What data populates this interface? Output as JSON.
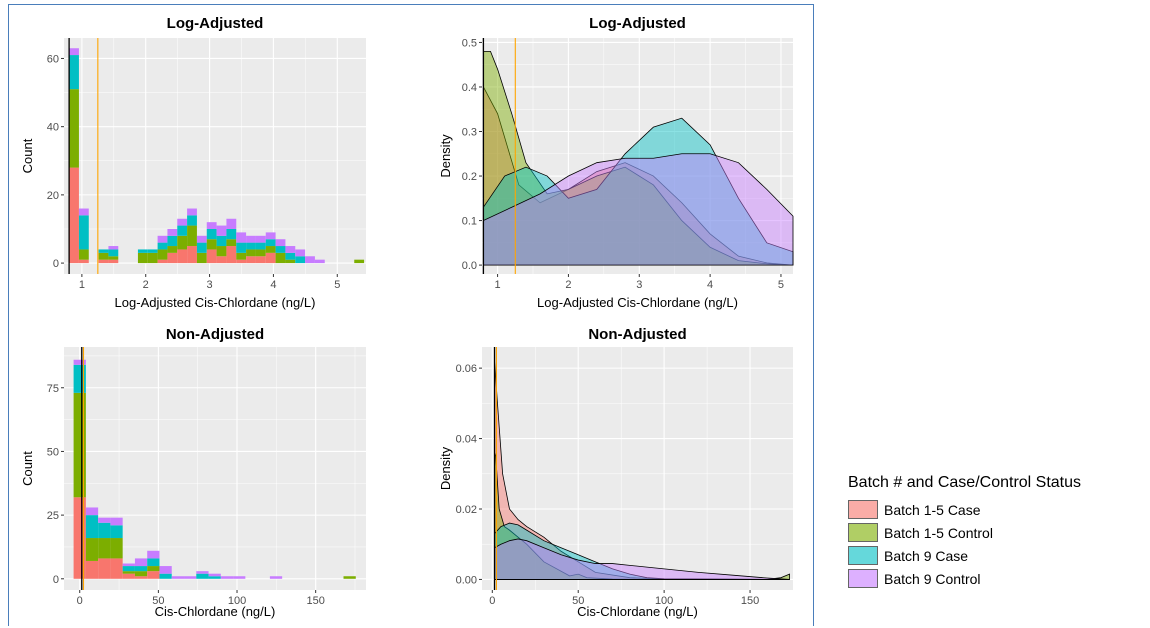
{
  "colors": {
    "Batch 1-5 Case": "#F8766D",
    "Batch 1-5 Control": "#7CAE00",
    "Batch 9 Case": "#00BFC4",
    "Batch 9 Control": "#C77CFF",
    "panel_bg": "#EBEBEB",
    "grid": "#FFFFFF",
    "vline_black": "#000000",
    "vline_orange": "#FFA500"
  },
  "legend": {
    "title": "Batch # and Case/Control Status",
    "items": [
      "Batch 1-5 Case",
      "Batch 1-5 Control",
      "Batch 9 Case",
      "Batch 9 Control"
    ]
  },
  "chart_data": [
    {
      "type": "bar",
      "subtype": "stacked-histogram",
      "title": "Log-Adjusted",
      "xlabel": "Log-Adjusted Cis-Chlordane (ng/L)",
      "ylabel": "Count",
      "xlim": [
        0.72,
        5.45
      ],
      "ylim": [
        -3.2,
        66
      ],
      "xticks": [
        1,
        2,
        3,
        4,
        5
      ],
      "yticks": [
        0,
        20,
        40,
        60
      ],
      "bin_width": 0.154,
      "vlines": [
        0.8,
        1.25
      ],
      "bins": [
        {
          "x0": 0.8,
          "counts": [
            28,
            23,
            10,
            2
          ]
        },
        {
          "x0": 0.954,
          "counts": [
            1,
            3,
            10,
            2
          ]
        },
        {
          "x0": 1.108,
          "counts": [
            0,
            0,
            0,
            0
          ]
        },
        {
          "x0": 1.262,
          "counts": [
            1,
            2,
            1,
            0
          ]
        },
        {
          "x0": 1.416,
          "counts": [
            1,
            1,
            2,
            1
          ]
        },
        {
          "x0": 1.57,
          "counts": [
            0,
            0,
            0,
            0
          ]
        },
        {
          "x0": 1.724,
          "counts": [
            0,
            0,
            0,
            0
          ]
        },
        {
          "x0": 1.878,
          "counts": [
            0,
            3,
            1,
            0
          ]
        },
        {
          "x0": 2.032,
          "counts": [
            0,
            3,
            1,
            0
          ]
        },
        {
          "x0": 2.186,
          "counts": [
            1,
            3,
            2,
            2
          ]
        },
        {
          "x0": 2.34,
          "counts": [
            3,
            2,
            3,
            2
          ]
        },
        {
          "x0": 2.494,
          "counts": [
            4,
            4,
            3,
            2
          ]
        },
        {
          "x0": 2.648,
          "counts": [
            5,
            6,
            3,
            2
          ]
        },
        {
          "x0": 2.802,
          "counts": [
            0,
            3,
            3,
            2
          ]
        },
        {
          "x0": 2.956,
          "counts": [
            4,
            3,
            3,
            2
          ]
        },
        {
          "x0": 3.11,
          "counts": [
            2,
            3,
            3,
            3
          ]
        },
        {
          "x0": 3.264,
          "counts": [
            5,
            2,
            3,
            3
          ]
        },
        {
          "x0": 3.418,
          "counts": [
            1,
            2,
            3,
            3
          ]
        },
        {
          "x0": 3.572,
          "counts": [
            2,
            2,
            2,
            2
          ]
        },
        {
          "x0": 3.726,
          "counts": [
            2,
            2,
            2,
            2
          ]
        },
        {
          "x0": 3.88,
          "counts": [
            3,
            2,
            2,
            2
          ]
        },
        {
          "x0": 4.034,
          "counts": [
            0,
            3,
            2,
            2
          ]
        },
        {
          "x0": 4.188,
          "counts": [
            0,
            1,
            2,
            2
          ]
        },
        {
          "x0": 4.342,
          "counts": [
            0,
            0,
            2,
            2
          ]
        },
        {
          "x0": 4.496,
          "counts": [
            0,
            0,
            0,
            2
          ]
        },
        {
          "x0": 4.65,
          "counts": [
            0,
            0,
            0,
            1
          ]
        },
        {
          "x0": 4.804,
          "counts": [
            0,
            0,
            0,
            0
          ]
        },
        {
          "x0": 4.958,
          "counts": [
            0,
            0,
            0,
            0
          ]
        },
        {
          "x0": 5.112,
          "counts": [
            0,
            0,
            0,
            0
          ]
        },
        {
          "x0": 5.266,
          "counts": [
            0,
            1,
            0,
            0
          ]
        }
      ]
    },
    {
      "type": "area",
      "subtype": "density",
      "title": "Log-Adjusted",
      "xlabel": "Log-Adjusted Cis-Chlordane (ng/L)",
      "ylabel": "Density",
      "xlim": [
        0.78,
        5.17
      ],
      "ylim": [
        -0.02,
        0.51
      ],
      "xticks": [
        1,
        2,
        3,
        4,
        5
      ],
      "yticks": [
        0.0,
        0.1,
        0.2,
        0.3,
        0.4,
        0.5
      ],
      "ytick_labels": [
        "0.0",
        "0.1",
        "0.2",
        "0.3",
        "0.4",
        "0.5"
      ],
      "vlines": [
        0.8,
        1.25
      ],
      "series": [
        {
          "name": "Batch 1-5 Case",
          "x": [
            0.8,
            1.0,
            1.3,
            1.6,
            2.0,
            2.4,
            2.8,
            3.2,
            3.6,
            4.0,
            4.4,
            4.8,
            5.17
          ],
          "y": [
            0.4,
            0.34,
            0.18,
            0.14,
            0.17,
            0.21,
            0.23,
            0.2,
            0.14,
            0.07,
            0.02,
            0.005,
            0.0
          ]
        },
        {
          "name": "Batch 1-5 Control",
          "x": [
            0.8,
            0.9,
            1.0,
            1.2,
            1.4,
            1.7,
            2.0,
            2.4,
            2.8,
            3.2,
            3.6,
            4.0,
            4.4,
            4.8,
            5.17
          ],
          "y": [
            0.48,
            0.48,
            0.44,
            0.34,
            0.23,
            0.16,
            0.17,
            0.2,
            0.22,
            0.18,
            0.1,
            0.04,
            0.01,
            0.003,
            0.0
          ]
        },
        {
          "name": "Batch 9 Case",
          "x": [
            0.8,
            1.1,
            1.4,
            1.7,
            2.0,
            2.4,
            2.8,
            3.2,
            3.6,
            4.0,
            4.4,
            4.8,
            5.17
          ],
          "y": [
            0.13,
            0.2,
            0.22,
            0.2,
            0.15,
            0.17,
            0.25,
            0.31,
            0.33,
            0.27,
            0.15,
            0.05,
            0.03
          ]
        },
        {
          "name": "Batch 9 Control",
          "x": [
            0.8,
            1.2,
            1.6,
            2.0,
            2.4,
            2.8,
            3.2,
            3.6,
            4.0,
            4.4,
            4.8,
            5.17
          ],
          "y": [
            0.1,
            0.13,
            0.16,
            0.2,
            0.23,
            0.24,
            0.24,
            0.25,
            0.25,
            0.23,
            0.17,
            0.11
          ]
        }
      ]
    },
    {
      "type": "bar",
      "subtype": "stacked-histogram",
      "title": "Non-Adjusted",
      "xlabel": "Cis-Chlordane (ng/L)",
      "ylabel": "Count",
      "xlim": [
        -10,
        182
      ],
      "ylim": [
        -4.4,
        91
      ],
      "xticks": [
        0,
        50,
        100,
        150
      ],
      "yticks": [
        0,
        25,
        50,
        75
      ],
      "bin_width": 7.8,
      "vlines": [
        1.3,
        2.4
      ],
      "bins": [
        {
          "x0": -3.9,
          "counts": [
            32,
            41,
            11,
            2
          ]
        },
        {
          "x0": 3.9,
          "counts": [
            7,
            9,
            9,
            3
          ]
        },
        {
          "x0": 11.7,
          "counts": [
            8,
            8,
            6,
            2
          ]
        },
        {
          "x0": 19.5,
          "counts": [
            8,
            8,
            5,
            3
          ]
        },
        {
          "x0": 27.3,
          "counts": [
            2,
            1,
            2,
            1
          ]
        },
        {
          "x0": 35.1,
          "counts": [
            1,
            2,
            2,
            3
          ]
        },
        {
          "x0": 42.9,
          "counts": [
            3,
            2,
            3,
            3
          ]
        },
        {
          "x0": 50.7,
          "counts": [
            0,
            0,
            2,
            3
          ]
        },
        {
          "x0": 58.5,
          "counts": [
            0,
            0,
            0,
            1
          ]
        },
        {
          "x0": 66.3,
          "counts": [
            0,
            0,
            0,
            1
          ]
        },
        {
          "x0": 74.1,
          "counts": [
            0,
            0,
            2,
            1
          ]
        },
        {
          "x0": 81.9,
          "counts": [
            0,
            0,
            1,
            1
          ]
        },
        {
          "x0": 89.7,
          "counts": [
            0,
            0,
            0,
            1
          ]
        },
        {
          "x0": 97.5,
          "counts": [
            0,
            0,
            0,
            1
          ]
        },
        {
          "x0": 120.9,
          "counts": [
            0,
            0,
            0,
            1
          ]
        },
        {
          "x0": 167.7,
          "counts": [
            0,
            1,
            0,
            0
          ]
        }
      ]
    },
    {
      "type": "area",
      "subtype": "density",
      "title": "Non-Adjusted",
      "xlabel": "Cis-Chlordane (ng/L)",
      "ylabel": "Density",
      "xlim": [
        -6,
        175
      ],
      "ylim": [
        -0.003,
        0.066
      ],
      "xticks": [
        0,
        50,
        100,
        150
      ],
      "yticks": [
        0.0,
        0.02,
        0.04,
        0.06
      ],
      "ytick_labels": [
        "0.00",
        "0.02",
        "0.04",
        "0.06"
      ],
      "vlines": [
        1.3,
        2.4
      ],
      "series": [
        {
          "name": "Batch 1-5 Case",
          "x": [
            1.3,
            3,
            6,
            10,
            15,
            20,
            30,
            40,
            50,
            60,
            80,
            100,
            173
          ],
          "y": [
            0.062,
            0.05,
            0.03,
            0.02,
            0.017,
            0.015,
            0.012,
            0.008,
            0.005,
            0.002,
            0.0005,
            0.0001,
            0.0
          ]
        },
        {
          "name": "Batch 1-5 Control",
          "x": [
            1.3,
            2,
            4,
            7,
            10,
            15,
            20,
            30,
            45,
            50,
            55,
            70,
            100,
            160,
            168,
            173
          ],
          "y": [
            0.036,
            0.035,
            0.02,
            0.015,
            0.014,
            0.012,
            0.01,
            0.005,
            0.001,
            0.0015,
            0.0005,
            0.0001,
            0.0,
            0.0,
            0.0005,
            0.0015
          ]
        },
        {
          "name": "Batch 9 Case",
          "x": [
            1.3,
            5,
            10,
            15,
            20,
            30,
            40,
            50,
            60,
            70,
            80,
            90,
            100,
            173
          ],
          "y": [
            0.013,
            0.015,
            0.016,
            0.0155,
            0.014,
            0.011,
            0.009,
            0.007,
            0.005,
            0.003,
            0.0015,
            0.0005,
            0.0002,
            0.0
          ]
        },
        {
          "name": "Batch 9 Control",
          "x": [
            1.3,
            5,
            10,
            15,
            20,
            30,
            40,
            50,
            60,
            70,
            80,
            90,
            100,
            120,
            140,
            160,
            173
          ],
          "y": [
            0.009,
            0.01,
            0.011,
            0.0115,
            0.011,
            0.009,
            0.007,
            0.0055,
            0.0045,
            0.0045,
            0.004,
            0.0035,
            0.003,
            0.002,
            0.0012,
            0.0004,
            0.0
          ]
        }
      ]
    }
  ]
}
